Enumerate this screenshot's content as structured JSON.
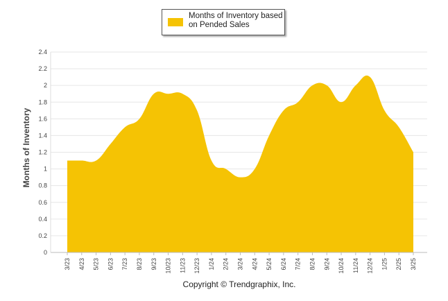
{
  "chart_data": {
    "type": "area",
    "series": [
      {
        "name": "Months of Inventory based on Pended Sales",
        "color": "#F5C304",
        "values": [
          1.1,
          1.1,
          1.1,
          1.3,
          1.5,
          1.6,
          1.9,
          1.9,
          1.9,
          1.7,
          1.1,
          1.0,
          0.9,
          1.0,
          1.4,
          1.7,
          1.8,
          2.0,
          2.0,
          1.8,
          2.0,
          2.1,
          1.7,
          1.5,
          1.2
        ]
      }
    ],
    "categories": [
      "3/23",
      "4/23",
      "5/23",
      "6/23",
      "7/23",
      "8/23",
      "9/23",
      "10/23",
      "11/23",
      "12/23",
      "1/24",
      "2/24",
      "3/24",
      "4/24",
      "5/24",
      "6/24",
      "7/24",
      "8/24",
      "9/24",
      "10/24",
      "11/24",
      "12/24",
      "1/25",
      "2/25",
      "3/25"
    ],
    "yticks": [
      "0",
      "0.2",
      "0.4",
      "0.6",
      "0.8",
      "1",
      "1.2",
      "1.4",
      "1.6",
      "1.8",
      "2",
      "2.2",
      "2.4"
    ],
    "ylim": [
      0,
      2.4
    ],
    "ylabel": "Months of Inventory",
    "xlabel": "",
    "title": "",
    "grid": true,
    "legend_position": "top-center",
    "legend_label": "Months of Inventory based on Pended Sales"
  },
  "footer": {
    "copyright": "Copyright © Trendgraphix, Inc."
  }
}
